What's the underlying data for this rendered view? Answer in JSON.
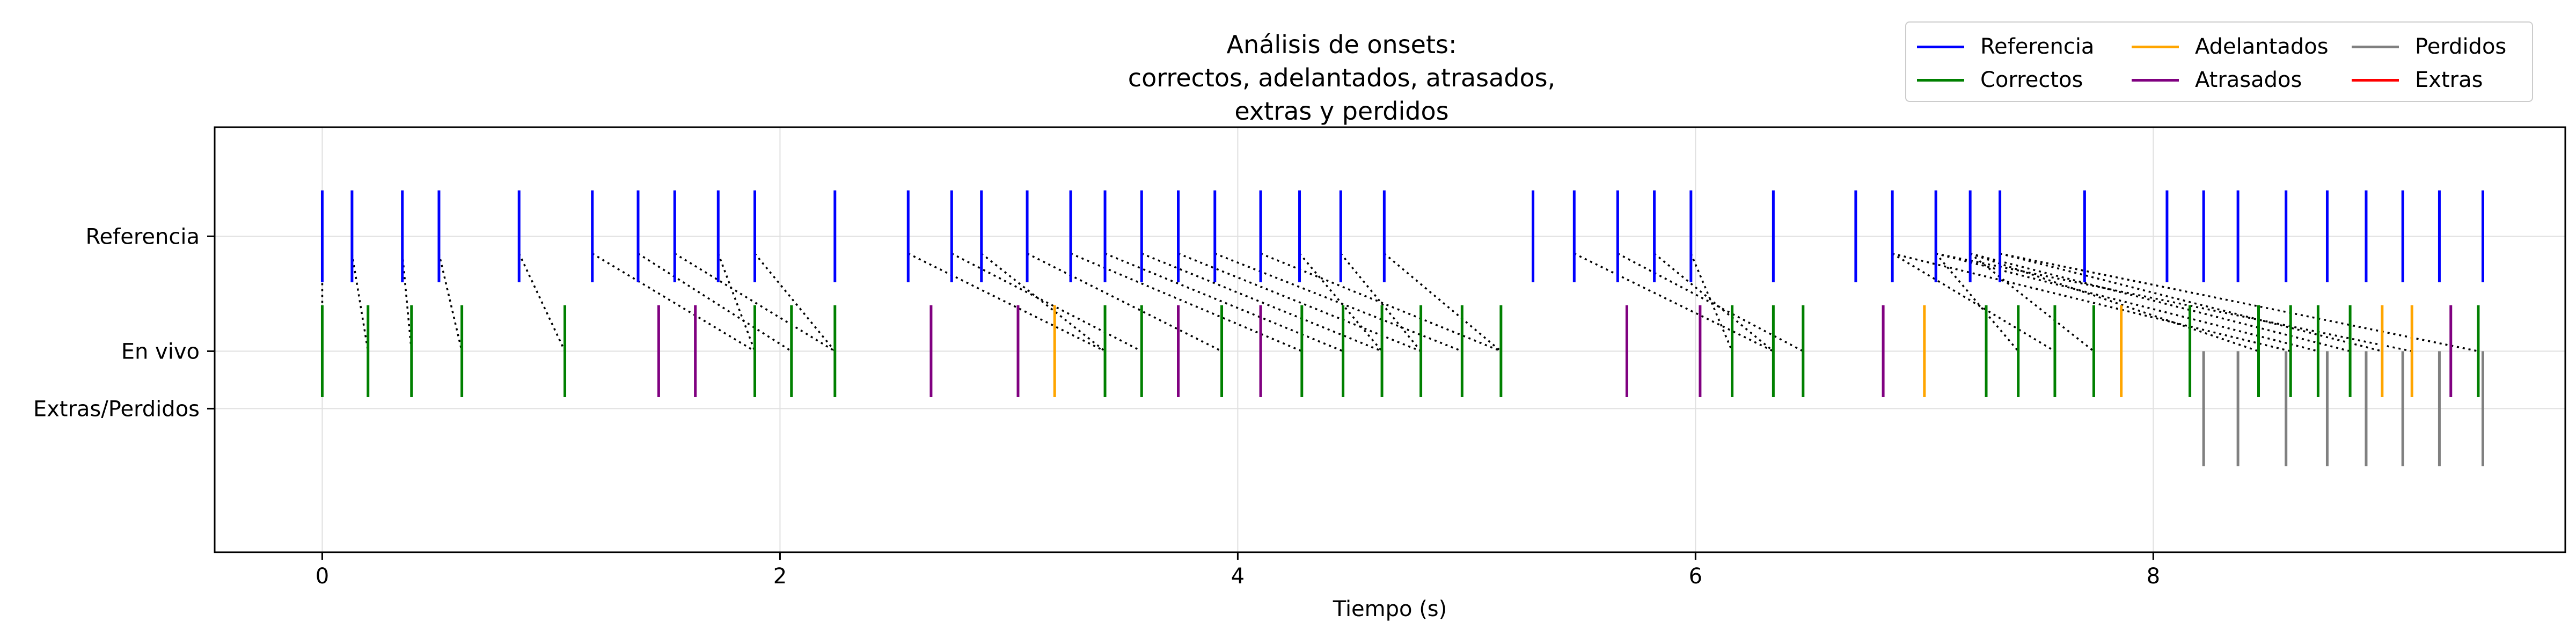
{
  "chart_data": {
    "type": "event_plot",
    "title_lines": [
      "Análisis de onsets:",
      "correctos, adelantados, atrasados,",
      "extras y perdidos"
    ],
    "xlabel": "Tiempo (s)",
    "ylabel": "",
    "xlim": [
      -0.47,
      9.8
    ],
    "x_ticks": [
      0,
      2,
      4,
      6,
      8
    ],
    "x_tick_labels": [
      "0",
      "2",
      "4",
      "6",
      "8"
    ],
    "y_ticks": [
      {
        "label": "Referencia",
        "value": 1.0
      },
      {
        "label": "En vivo",
        "value": 0.0
      },
      {
        "label": "Extras/Perdidos",
        "value": -0.5
      }
    ],
    "ylim": [
      -1.75,
      1.95
    ],
    "grid": true,
    "legend_position": "top-right",
    "legend": [
      {
        "name": "Referencia",
        "color": "#0000ff"
      },
      {
        "name": "Correctos",
        "color": "#008000"
      },
      {
        "name": "Adelantados",
        "color": "#ffa500"
      },
      {
        "name": "Atrasados",
        "color": "#800080"
      },
      {
        "name": "Perdidos",
        "color": "#808080"
      },
      {
        "name": "Extras",
        "color": "#ff0000"
      }
    ],
    "reference_onsets": [
      0.0,
      0.13,
      0.35,
      0.51,
      0.86,
      1.18,
      1.38,
      1.54,
      1.73,
      1.89,
      2.24,
      2.56,
      2.75,
      2.88,
      3.08,
      3.27,
      3.42,
      3.58,
      3.74,
      3.9,
      4.1,
      4.27,
      4.45,
      4.64,
      5.29,
      5.47,
      5.66,
      5.82,
      5.98,
      6.34,
      6.7,
      6.86,
      7.05,
      7.2,
      7.33,
      7.7,
      8.06,
      8.22,
      8.37,
      8.58,
      8.76,
      8.93,
      9.09,
      9.25,
      9.44
    ],
    "live_events": [
      {
        "type": "correct",
        "time": 0.0
      },
      {
        "type": "correct",
        "time": 0.2
      },
      {
        "type": "correct",
        "time": 0.39
      },
      {
        "type": "correct",
        "time": 0.61
      },
      {
        "type": "correct",
        "time": 1.06
      },
      {
        "type": "late",
        "time": 1.47
      },
      {
        "type": "late",
        "time": 1.63
      },
      {
        "type": "correct",
        "time": 1.89
      },
      {
        "type": "correct",
        "time": 2.05
      },
      {
        "type": "correct",
        "time": 2.24
      },
      {
        "type": "late",
        "time": 2.66
      },
      {
        "type": "late",
        "time": 3.04
      },
      {
        "type": "early",
        "time": 3.2
      },
      {
        "type": "correct",
        "time": 3.42
      },
      {
        "type": "correct",
        "time": 3.58
      },
      {
        "type": "late",
        "time": 3.74
      },
      {
        "type": "correct",
        "time": 3.93
      },
      {
        "type": "late",
        "time": 4.1
      },
      {
        "type": "correct",
        "time": 4.28
      },
      {
        "type": "correct",
        "time": 4.46
      },
      {
        "type": "correct",
        "time": 4.63
      },
      {
        "type": "correct",
        "time": 4.8
      },
      {
        "type": "correct",
        "time": 4.98
      },
      {
        "type": "correct",
        "time": 5.15
      },
      {
        "type": "late",
        "time": 5.7
      },
      {
        "type": "late",
        "time": 6.02
      },
      {
        "type": "correct",
        "time": 6.16
      },
      {
        "type": "correct",
        "time": 6.34
      },
      {
        "type": "correct",
        "time": 6.47
      },
      {
        "type": "late",
        "time": 6.82
      },
      {
        "type": "early",
        "time": 7.0
      },
      {
        "type": "correct",
        "time": 7.27
      },
      {
        "type": "correct",
        "time": 7.41
      },
      {
        "type": "correct",
        "time": 7.57
      },
      {
        "type": "correct",
        "time": 7.74
      },
      {
        "type": "early",
        "time": 7.86
      },
      {
        "type": "correct",
        "time": 8.16
      },
      {
        "type": "correct",
        "time": 8.46
      },
      {
        "type": "correct",
        "time": 8.6
      },
      {
        "type": "correct",
        "time": 8.72
      },
      {
        "type": "correct",
        "time": 8.86
      },
      {
        "type": "early",
        "time": 9.0
      },
      {
        "type": "early",
        "time": 9.13
      },
      {
        "type": "late",
        "time": 9.3
      },
      {
        "type": "correct",
        "time": 9.42
      }
    ],
    "missed_onsets": [
      8.22,
      8.37,
      8.58,
      8.76,
      8.93,
      9.09,
      9.25,
      9.44
    ],
    "extra_onsets": [],
    "matches": [
      [
        0.0,
        0.0
      ],
      [
        0.13,
        0.2
      ],
      [
        0.35,
        0.39
      ],
      [
        0.51,
        0.61
      ],
      [
        0.86,
        1.06
      ],
      [
        1.18,
        1.89
      ],
      [
        1.38,
        2.05
      ],
      [
        1.54,
        2.24
      ],
      [
        1.73,
        1.89
      ],
      [
        1.89,
        2.24
      ],
      [
        2.56,
        3.42
      ],
      [
        2.75,
        3.58
      ],
      [
        2.88,
        3.42
      ],
      [
        3.08,
        3.93
      ],
      [
        3.27,
        4.28
      ],
      [
        3.42,
        4.46
      ],
      [
        3.58,
        4.63
      ],
      [
        3.74,
        4.8
      ],
      [
        3.9,
        4.98
      ],
      [
        4.1,
        5.15
      ],
      [
        4.27,
        4.63
      ],
      [
        4.45,
        4.8
      ],
      [
        4.64,
        5.15
      ],
      [
        5.47,
        6.34
      ],
      [
        5.66,
        6.47
      ],
      [
        5.82,
        6.34
      ],
      [
        5.98,
        6.16
      ],
      [
        6.86,
        7.57
      ],
      [
        7.05,
        7.41
      ],
      [
        7.2,
        7.74
      ],
      [
        7.33,
        9.0
      ],
      [
        7.33,
        9.42
      ],
      [
        7.2,
        8.86
      ],
      [
        7.05,
        8.72
      ],
      [
        6.86,
        8.6
      ],
      [
        7.05,
        9.13
      ],
      [
        7.2,
        8.46
      ]
    ]
  }
}
